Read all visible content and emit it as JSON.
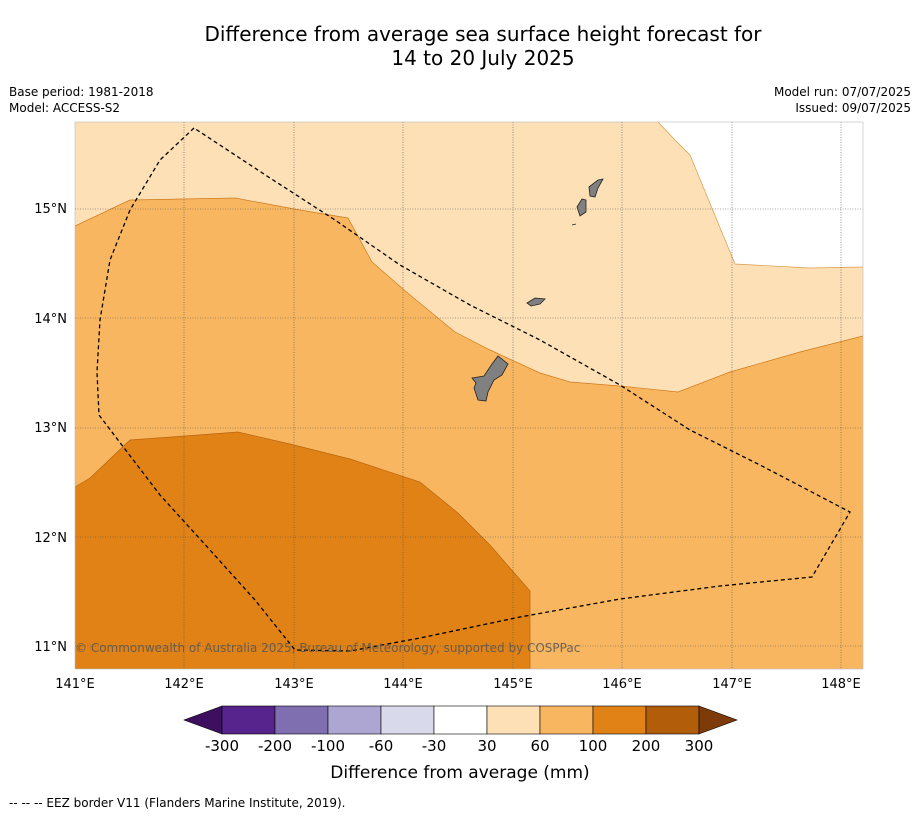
{
  "title": {
    "line1": "Difference from average sea surface height forecast for",
    "line2": "14 to 20 July 2025"
  },
  "meta": {
    "base_period": "Base period: 1981-2018",
    "model": "Model: ACCESS-S2",
    "model_run": "Model run: 07/07/2025",
    "issued": "Issued: 09/07/2025"
  },
  "map": {
    "lon_labels": [
      "141°E",
      "142°E",
      "143°E",
      "144°E",
      "145°E",
      "146°E",
      "147°E",
      "148°E"
    ],
    "lat_labels": [
      "15°N",
      "14°N",
      "13°N",
      "12°N",
      "11°N"
    ],
    "copyright": "© Commonwealth of Australia 2025, Bureau of Meteorology, supported by COSPPac",
    "land_color": "#808080",
    "eez_line": "dashed"
  },
  "colorbar": {
    "tick_labels": [
      "-300",
      "-200",
      "-100",
      "-60",
      "-30",
      "30",
      "60",
      "100",
      "200",
      "300"
    ],
    "colors": [
      "#3d0f5e",
      "#57238d",
      "#7f6eb0",
      "#ada5d2",
      "#d9d9ec",
      "#ffffff",
      "#fde0b6",
      "#f9b661",
      "#e08216",
      "#b15d09",
      "#7e3b0a"
    ],
    "label": "Difference from average (mm)"
  },
  "footnote": "--  --  -- EEZ border V11 (Flanders Marine Institute, 2019)."
}
